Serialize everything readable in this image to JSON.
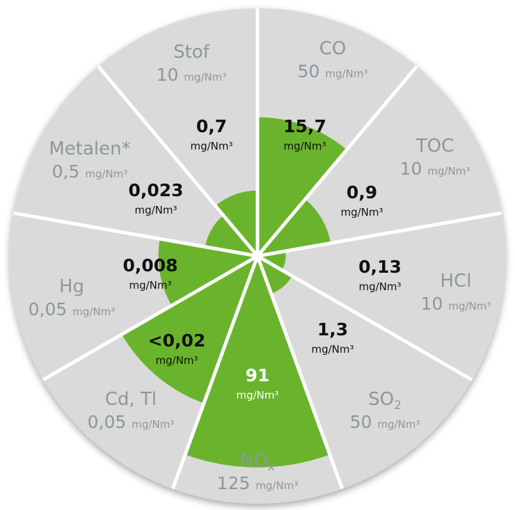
{
  "colors": {
    "sector_fill": "#dadada",
    "divider": "#ffffff",
    "measured_fill": "#6ab42d",
    "limit_text": "#8c979c",
    "value_text": "#111111",
    "value_text_on_green": "#ffffff"
  },
  "chart_data": {
    "type": "polar-area",
    "center_at_ring_fraction": 1.0,
    "sectors": [
      {
        "label": "CO",
        "limit_value": "50",
        "limit_unit": "mg/Nm³",
        "measured": "15,7",
        "measured_unit": "mg/Nm³",
        "measured_pct_of_limit": 31.4
      },
      {
        "label": "TOC",
        "limit_value": "10",
        "limit_unit": "mg/Nm³",
        "measured": "0,9",
        "measured_unit": "mg/Nm³",
        "measured_pct_of_limit": 9
      },
      {
        "label": "HCl",
        "limit_value": "10",
        "limit_unit": "mg/Nm³",
        "measured": "0,13",
        "measured_unit": "mg/Nm³",
        "measured_pct_of_limit": 1.3
      },
      {
        "label": "SO",
        "label_sub": "2",
        "limit_value": "50",
        "limit_unit": "mg/Nm³",
        "measured": "1,3",
        "measured_unit": "mg/Nm³",
        "measured_pct_of_limit": 2.6
      },
      {
        "label": "NO",
        "label_sub": "x",
        "limit_value": "125",
        "limit_unit": "mg/Nm³",
        "measured": "91",
        "measured_unit": "mg/Nm³",
        "measured_pct_of_limit": 72.8
      },
      {
        "label": "Cd, Tl",
        "limit_value": "0,05",
        "limit_unit": "mg/Nm³",
        "measured": "<0,02",
        "measured_unit": "mg/Nm³",
        "measured_pct_of_limit": 40
      },
      {
        "label": "Hg",
        "limit_value": "0,05",
        "limit_unit": "mg/Nm³",
        "measured": "0,008",
        "measured_unit": "mg/Nm³",
        "measured_pct_of_limit": 16
      },
      {
        "label": "Metalen*",
        "limit_value": "0,5",
        "limit_unit": "mg/Nm³",
        "measured": "0,023",
        "measured_unit": "mg/Nm³",
        "measured_pct_of_limit": 4.6
      },
      {
        "label": "Stof",
        "limit_value": "10",
        "limit_unit": "mg/Nm³",
        "measured": "0,7",
        "measured_unit": "mg/Nm³",
        "measured_pct_of_limit": 7
      }
    ]
  }
}
